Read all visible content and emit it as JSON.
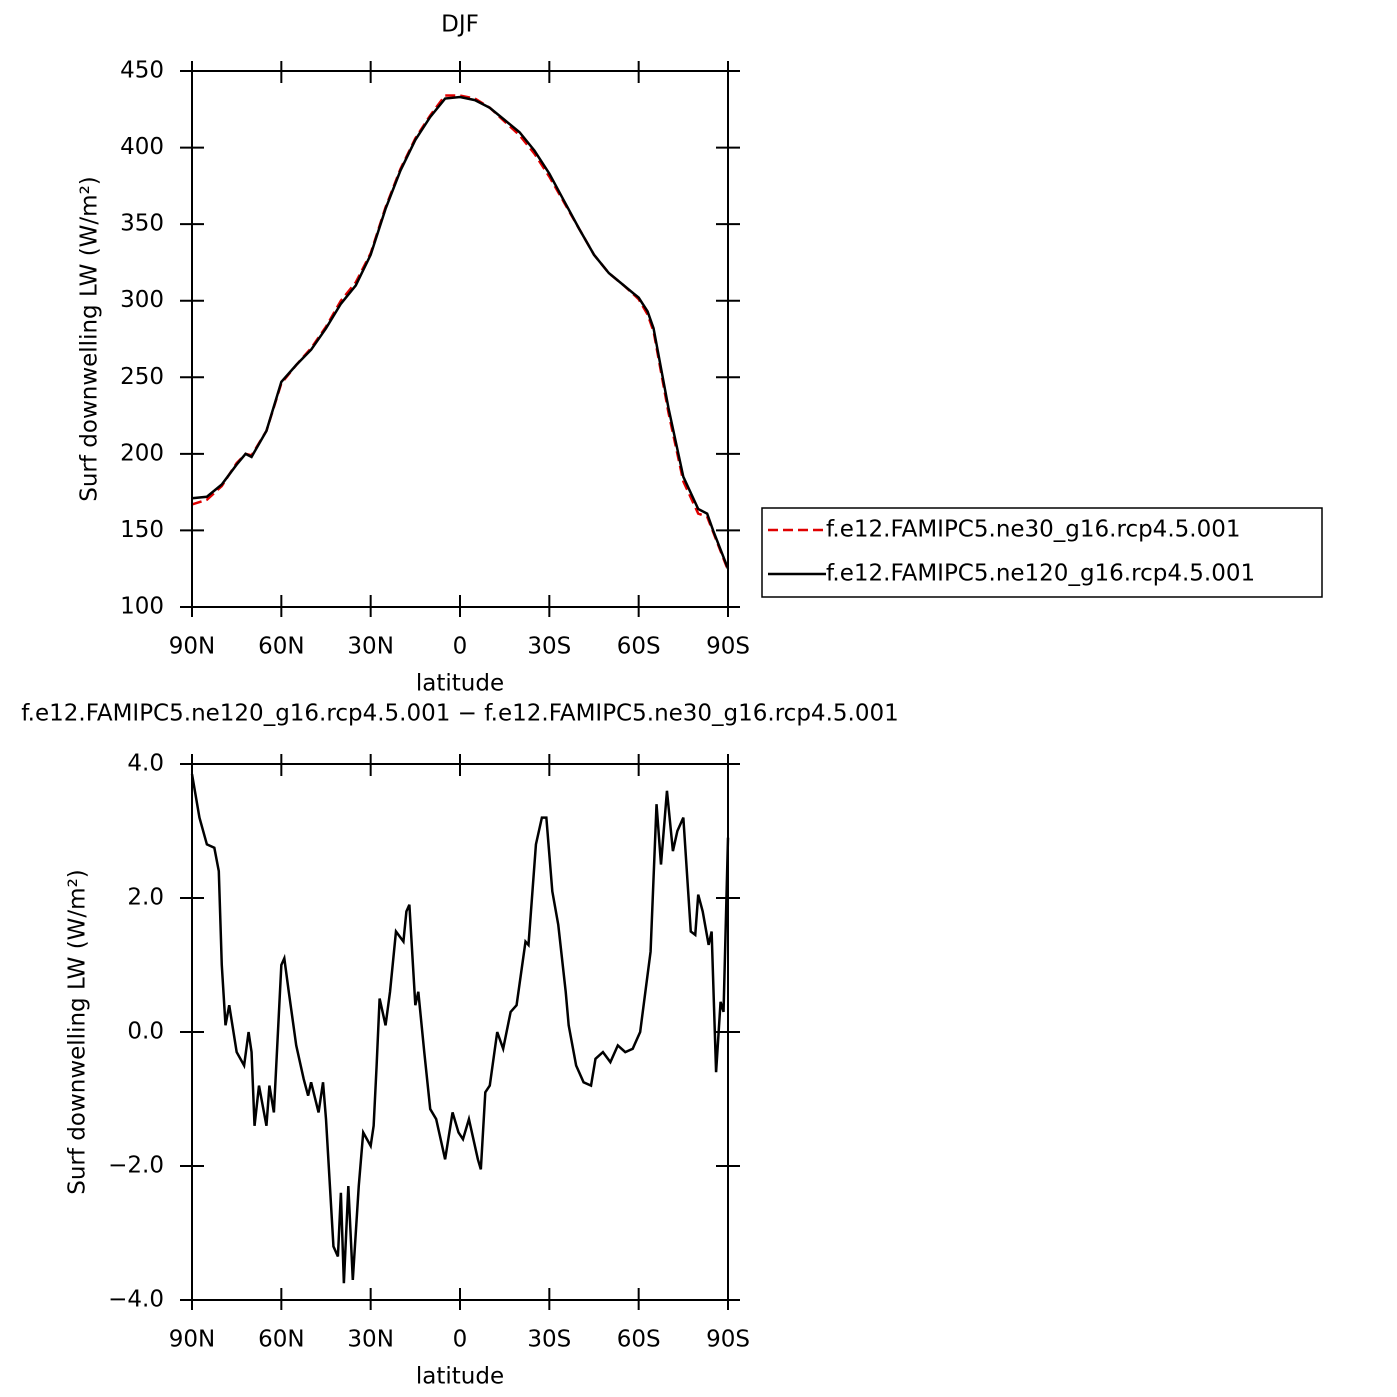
{
  "chart_data": [
    {
      "type": "line",
      "title": "DJF",
      "x_label": "latitude",
      "y_label": "Surf downwelling LW (W/m²)",
      "x": [
        90,
        85,
        80,
        75,
        72,
        70,
        65,
        60,
        55,
        50,
        45,
        40,
        35,
        30,
        25,
        20,
        15,
        10,
        5,
        0,
        -5,
        -10,
        -15,
        -20,
        -25,
        -30,
        -35,
        -40,
        -45,
        -50,
        -55,
        -60,
        -63,
        -65,
        -70,
        -75,
        -80,
        -83,
        -85,
        -90
      ],
      "series": [
        {
          "name": "f.e12.FAMIPC5.ne30_g16.rcp4.5.001",
          "color": "#e00000",
          "dash": "dashed",
          "values": [
            167,
            170,
            179,
            194,
            200,
            199,
            215,
            246,
            258,
            269,
            283,
            300,
            312,
            331,
            361,
            386,
            406,
            421,
            434,
            434,
            432,
            426,
            417,
            408,
            396,
            381,
            364,
            347,
            330,
            318,
            310,
            301,
            291,
            280,
            227,
            182,
            161,
            159,
            149,
            124
          ]
        },
        {
          "name": "f.e12.FAMIPC5.ne120_g16.rcp4.5.001",
          "color": "#000000",
          "dash": "solid",
          "values": [
            171,
            172,
            180,
            193,
            200,
            198,
            215,
            247,
            258,
            268,
            282,
            298,
            310,
            330,
            360,
            385,
            405,
            420,
            432,
            433,
            431,
            426,
            418,
            410,
            398,
            383,
            365,
            347,
            330,
            318,
            310,
            302,
            293,
            282,
            230,
            185,
            164,
            161,
            150,
            125
          ]
        }
      ],
      "xlim": [
        90,
        -90
      ],
      "ylim": [
        100,
        450
      ],
      "xticks": [
        {
          "value": 90,
          "label": "90N"
        },
        {
          "value": 60,
          "label": "60N"
        },
        {
          "value": 30,
          "label": "30N"
        },
        0,
        {
          "value": -30,
          "label": "30S"
        },
        {
          "value": -60,
          "label": "60S"
        },
        {
          "value": -90,
          "label": "90S"
        }
      ],
      "yticks": [
        100,
        150,
        200,
        250,
        300,
        350,
        400,
        450
      ],
      "legend": "right"
    },
    {
      "type": "line",
      "title": "f.e12.FAMIPC5.ne120_g16.rcp4.5.001 − f.e12.FAMIPC5.ne30_g16.rcp4.5.001",
      "x_label": "latitude",
      "y_label": "Surf downwelling LW (W/m²)",
      "x": [
        90,
        87.5,
        85,
        82.5,
        81,
        80,
        78.75,
        77.5,
        75,
        72.5,
        71,
        70,
        69,
        67.5,
        65,
        64,
        62.5,
        60,
        59,
        57.5,
        55,
        52.5,
        51,
        50,
        47.5,
        46,
        45,
        42.5,
        41,
        40,
        39,
        37.5,
        36,
        34,
        32.5,
        30,
        29,
        28,
        27,
        25,
        23.5,
        21.5,
        19,
        18,
        17,
        15,
        14,
        12,
        10,
        8,
        5,
        2.5,
        0.5,
        -1,
        -3,
        -6,
        -7,
        -8.5,
        -10,
        -12.5,
        -14.5,
        -17,
        -19,
        -22,
        -23,
        -25.5,
        -27.5,
        -29,
        -31,
        -33,
        -35.5,
        -36.5,
        -39,
        -41.5,
        -44,
        -45.5,
        -48,
        -50.5,
        -53,
        -55.5,
        -58,
        -60.5,
        -64,
        -66,
        -67.5,
        -69.5,
        -71.5,
        -73,
        -75,
        -77.5,
        -79,
        -80,
        -81.5,
        -83.5,
        -84.5,
        -86,
        -87.5,
        -88.5,
        -90
      ],
      "series": [
        {
          "name": "f.e12.FAMIPC5.ne120_g16.rcp4.5.001 − f.e12.FAMIPC5.ne30_g16.rcp4.5.001",
          "color": "#000000",
          "dash": "solid",
          "values": [
            3.85,
            3.2,
            2.8,
            2.75,
            2.4,
            1.0,
            0.1,
            0.4,
            -0.3,
            -0.5,
            0.0,
            -0.3,
            -1.4,
            -0.8,
            -1.4,
            -0.8,
            -1.2,
            1.0,
            1.1,
            0.6,
            -0.2,
            -0.7,
            -0.95,
            -0.75,
            -1.2,
            -0.75,
            -1.3,
            -3.2,
            -3.35,
            -2.4,
            -3.75,
            -2.3,
            -3.7,
            -2.3,
            -1.5,
            -1.7,
            -1.4,
            -0.5,
            0.5,
            0.1,
            0.6,
            1.5,
            1.35,
            1.8,
            1.9,
            0.4,
            0.6,
            -0.3,
            -1.15,
            -1.3,
            -1.9,
            -1.2,
            -1.5,
            -1.6,
            -1.3,
            -1.9,
            -2.05,
            -0.9,
            -0.8,
            0.0,
            -0.25,
            0.3,
            0.4,
            1.35,
            1.3,
            2.8,
            3.2,
            3.2,
            2.1,
            1.6,
            0.6,
            0.1,
            -0.5,
            -0.75,
            -0.8,
            -0.4,
            -0.3,
            -0.45,
            -0.2,
            -0.3,
            -0.25,
            0.0,
            1.2,
            3.4,
            2.5,
            3.6,
            2.7,
            3.0,
            3.2,
            1.5,
            1.45,
            2.05,
            1.8,
            1.3,
            1.5,
            -0.6,
            0.45,
            0.3,
            2.9
          ]
        }
      ],
      "xlim": [
        90,
        -90
      ],
      "ylim": [
        -4,
        4
      ],
      "xticks": [
        {
          "value": 90,
          "label": "90N"
        },
        {
          "value": 60,
          "label": "60N"
        },
        {
          "value": 30,
          "label": "30N"
        },
        0,
        {
          "value": -30,
          "label": "30S"
        },
        {
          "value": -60,
          "label": "60S"
        },
        {
          "value": -90,
          "label": "90S"
        }
      ],
      "yticks": [
        {
          "value": -4,
          "label": "−4.0"
        },
        {
          "value": -2,
          "label": "−2.0"
        },
        {
          "value": 0,
          "label": "0.0"
        },
        {
          "value": 2,
          "label": "2.0"
        },
        {
          "value": 4,
          "label": "4.0"
        }
      ]
    }
  ]
}
